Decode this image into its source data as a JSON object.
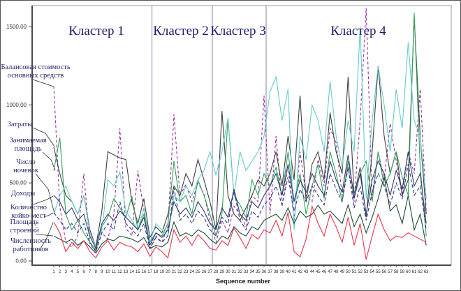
{
  "chart_data": {
    "type": "line",
    "title": "",
    "xlabel": "Sequence number",
    "ylabel": "",
    "x_min": 1,
    "x_max": 63,
    "ylim": [
      0,
      1660
    ],
    "grid": false,
    "legend_position": "left-callouts",
    "yticks": [
      {
        "value": 0,
        "label": "0,00"
      },
      {
        "value": 500,
        "label": "500,00"
      },
      {
        "value": 1000,
        "label": "1000,00"
      },
      {
        "value": 1500,
        "label": "1500,00"
      }
    ],
    "cluster_boundaries": [
      17.35,
      27.4,
      36.35
    ],
    "clusters": [
      {
        "label": "Кластер 1",
        "sequences": "1-17"
      },
      {
        "label": "Кластер 2",
        "sequences": "18-27"
      },
      {
        "label": "Кластер 3",
        "sequences": "28-36"
      },
      {
        "label": "Кластер 4",
        "sequences": "37-63"
      }
    ],
    "colors": {
      "divider": "#8585ad",
      "axis": "#4a4a4a",
      "cluster_label": "#1b1b6e",
      "legend_label": "#26266b"
    },
    "series": [
      {
        "name": "Балансовая стоимость основных средств",
        "color": "#993399",
        "dash": "4,3",
        "values": [
          1120,
          350,
          120,
          90,
          160,
          560,
          110,
          60,
          180,
          140,
          300,
          850,
          210,
          160,
          580,
          320,
          80,
          160,
          120,
          220,
          940,
          420,
          490,
          380,
          500,
          430,
          260,
          120,
          260,
          180,
          350,
          300,
          220,
          420,
          380,
          1060,
          300,
          800,
          350,
          620,
          260,
          700,
          420,
          380,
          650,
          480,
          850,
          760,
          420,
          600,
          380,
          900,
          1620,
          420,
          700,
          520,
          880,
          640,
          420,
          700,
          560,
          1100,
          320
        ]
      },
      {
        "name": "Затраты",
        "color": "#3f3f3f",
        "dash": "",
        "values": [
          730,
          560,
          420,
          380,
          300,
          420,
          200,
          90,
          320,
          700,
          680,
          660,
          650,
          380,
          240,
          400,
          150,
          220,
          180,
          300,
          480,
          420,
          560,
          480,
          650,
          520,
          380,
          200,
          960,
          420,
          300,
          260,
          340,
          420,
          520,
          480,
          560,
          700,
          480,
          800,
          520,
          1060,
          380,
          620,
          700,
          520,
          950,
          700,
          560,
          1180,
          420,
          600,
          280,
          700,
          1250,
          800,
          560,
          700,
          420,
          520,
          1560,
          800,
          300
        ]
      },
      {
        "name": "Занимаемая площадь",
        "color": "#33a05a",
        "dash": "",
        "values": [
          580,
          790,
          300,
          200,
          260,
          180,
          120,
          70,
          220,
          280,
          400,
          340,
          280,
          415,
          200,
          300,
          120,
          180,
          160,
          240,
          640,
          380,
          420,
          300,
          520,
          420,
          300,
          160,
          300,
          915,
          420,
          360,
          280,
          520,
          420,
          560,
          480,
          600,
          420,
          700,
          380,
          560,
          300,
          480,
          620,
          400,
          700,
          560,
          380,
          640,
          420,
          560,
          640,
          380,
          700,
          480,
          560,
          700,
          540,
          420,
          1590,
          600,
          160
        ]
      },
      {
        "name": "Число ночевок",
        "color": "#66cbcb",
        "dash": "",
        "values": [
          300,
          420,
          480,
          380,
          300,
          420,
          180,
          90,
          200,
          520,
          480,
          570,
          320,
          260,
          200,
          340,
          120,
          240,
          200,
          160,
          420,
          380,
          480,
          420,
          520,
          580,
          700,
          550,
          700,
          915,
          420,
          700,
          580,
          640,
          700,
          800,
          1085,
          1180,
          900,
          1100,
          200,
          800,
          650,
          1000,
          900,
          700,
          1150,
          800,
          600,
          900,
          700,
          1500,
          400,
          900,
          1250,
          1000,
          700,
          1100,
          850,
          1400,
          900,
          800,
          400
        ]
      },
      {
        "name": "Доходы",
        "color": "#2e3d6e",
        "dash": "",
        "values": [
          420,
          380,
          300,
          340,
          260,
          300,
          160,
          80,
          240,
          300,
          260,
          320,
          280,
          240,
          200,
          280,
          100,
          180,
          150,
          200,
          380,
          300,
          340,
          280,
          380,
          320,
          240,
          200,
          340,
          280,
          460,
          300,
          260,
          380,
          340,
          420,
          480,
          560,
          420,
          620,
          380,
          520,
          440,
          560,
          480,
          420,
          640,
          520,
          440,
          680,
          400,
          560,
          300,
          520,
          640,
          560,
          420,
          580,
          460,
          700,
          480,
          560,
          240
        ]
      },
      {
        "name": "Количество койко-мест",
        "color": "#33338c",
        "dash": "5,3",
        "values": [
          310,
          260,
          200,
          240,
          180,
          240,
          120,
          60,
          180,
          240,
          200,
          380,
          240,
          200,
          160,
          240,
          80,
          150,
          120,
          160,
          470,
          260,
          300,
          240,
          320,
          280,
          200,
          160,
          280,
          240,
          450,
          260,
          200,
          320,
          280,
          360,
          400,
          480,
          360,
          540,
          320,
          460,
          380,
          480,
          420,
          360,
          560,
          460,
          380,
          600,
          340,
          480,
          260,
          440,
          560,
          480,
          360,
          500,
          400,
          620,
          420,
          480,
          200
        ]
      },
      {
        "name": "Площадь строений",
        "color": "#1d4a35",
        "dash": "",
        "values": [
          160,
          140,
          120,
          140,
          100,
          130,
          90,
          50,
          110,
          140,
          130,
          160,
          150,
          140,
          120,
          150,
          80,
          100,
          90,
          120,
          250,
          160,
          180,
          160,
          200,
          180,
          140,
          110,
          160,
          140,
          220,
          180,
          160,
          220,
          200,
          260,
          281,
          300,
          260,
          340,
          240,
          320,
          280,
          300,
          357,
          300,
          320,
          280,
          240,
          360,
          220,
          300,
          180,
          280,
          400,
          540,
          320,
          360,
          240,
          420,
          200,
          300,
          100
        ]
      },
      {
        "name": "Численность работников",
        "color": "#e8334a",
        "dash": "",
        "values": [
          250,
          180,
          60,
          120,
          80,
          130,
          60,
          20,
          90,
          130,
          70,
          120,
          100,
          90,
          60,
          110,
          30,
          90,
          60,
          20,
          200,
          120,
          160,
          100,
          170,
          130,
          80,
          70,
          130,
          100,
          210,
          150,
          80,
          170,
          140,
          200,
          180,
          260,
          160,
          312,
          60,
          27,
          140,
          350,
          240,
          160,
          300,
          220,
          120,
          280,
          100,
          240,
          10,
          160,
          300,
          200,
          130,
          160,
          150,
          180,
          160,
          140,
          120
        ]
      }
    ]
  }
}
